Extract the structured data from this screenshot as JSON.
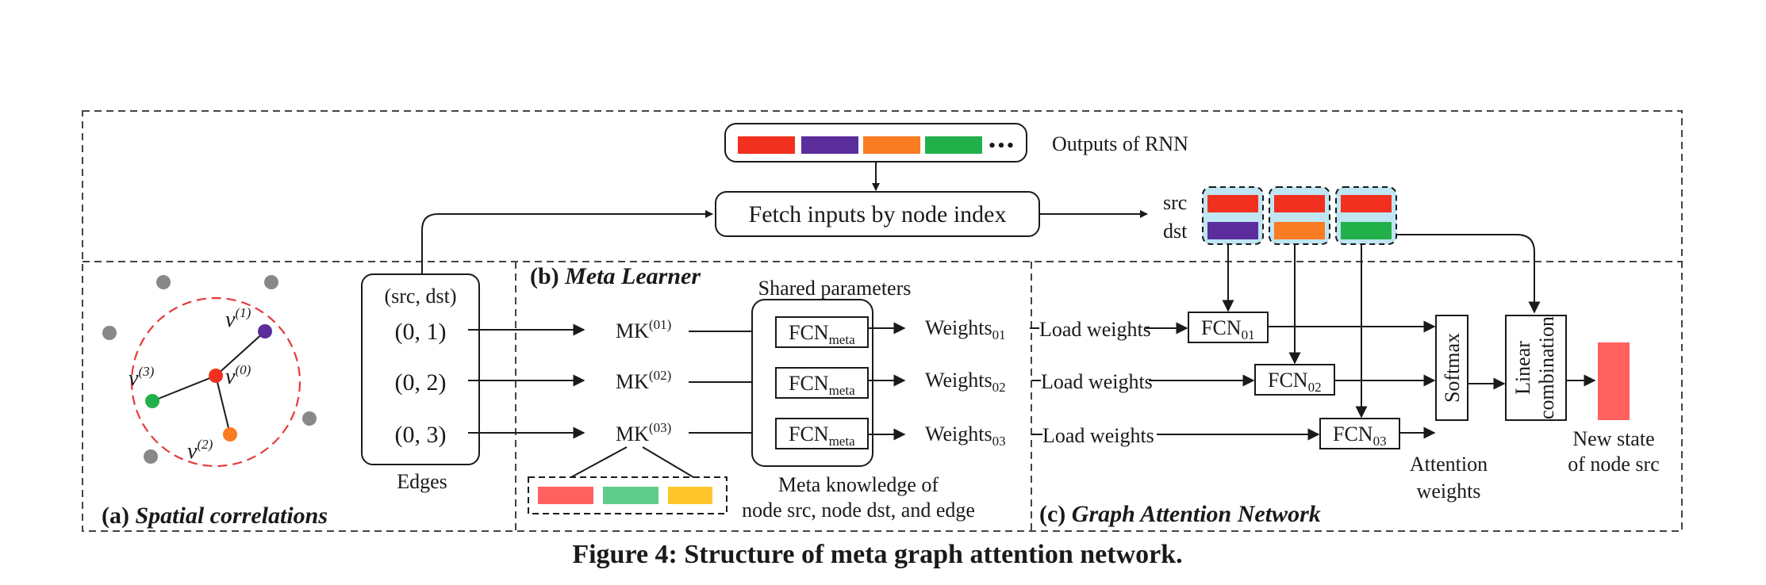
{
  "caption": "Figure 4: Structure of meta graph attention network.",
  "colors": {
    "red": "#f2301f",
    "purple": "#5b2d9c",
    "orange": "#f97b22",
    "green": "#22b04b",
    "gray": "#888888",
    "salmon": "#ff6161",
    "mint": "#5fcc8c",
    "yellow": "#ffc72c",
    "lightblue": "#bfe6f2",
    "dashed_circle": "#e53b3b"
  },
  "top": {
    "outputs_label": "Outputs of RNN",
    "ellipsis": "•••",
    "fetch_label": "Fetch inputs by node index",
    "src_label": "src",
    "dst_label": "dst"
  },
  "panel_a": {
    "title_prefix": "(a)",
    "title": "Spatial correlations",
    "nodes": [
      {
        "label": "v",
        "sup": "(0)"
      },
      {
        "label": "v",
        "sup": "(1)"
      },
      {
        "label": "v",
        "sup": "(2)"
      },
      {
        "label": "v",
        "sup": "(3)"
      }
    ],
    "edges_header": "(src, dst)",
    "edges": [
      "(0, 1)",
      "(0, 2)",
      "(0, 3)"
    ],
    "edges_caption": "Edges"
  },
  "panel_b": {
    "title_prefix": "(b)",
    "title": "Meta Learner",
    "shared_label": "Shared parameters",
    "mk_base": "MK",
    "mk_sups": [
      "(01)",
      "(02)",
      "(03)"
    ],
    "fcn_base": "FCN",
    "fcn_sub": "meta",
    "weights_base": "Weights",
    "weights_subs": [
      "01",
      "02",
      "03"
    ],
    "mk_caption_line1": "Meta knowledge of",
    "mk_caption_line2": "node src, node dst, and edge"
  },
  "panel_c": {
    "title_prefix": "(c)",
    "title": "Graph Attention Network",
    "load_label": "Load weights",
    "fcn_base": "FCN",
    "fcn_subs": [
      "01",
      "02",
      "03"
    ],
    "softmax_label": "Softmax",
    "linear_label_line1": "Linear",
    "linear_label_line2": "combination",
    "attention_line1": "Attention",
    "attention_line2": "weights",
    "newstate_line1": "New state",
    "newstate_line2": "of node src"
  }
}
